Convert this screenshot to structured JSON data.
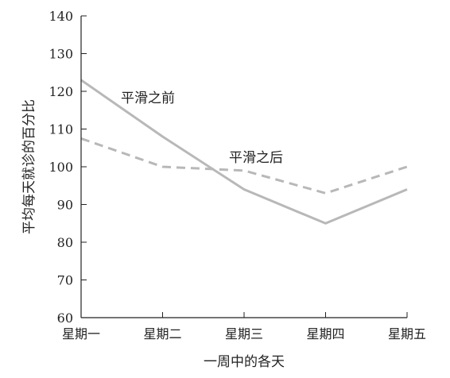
{
  "chart_data": {
    "type": "line",
    "title": "",
    "xlabel": "一周中的各天",
    "ylabel": "平均每天就诊的百分比",
    "categories": [
      "星期一",
      "星期二",
      "星期三",
      "星期四",
      "星期五"
    ],
    "ylim": [
      60,
      140
    ],
    "yticks": [
      60,
      70,
      80,
      90,
      100,
      110,
      120,
      130,
      140
    ],
    "grid": false,
    "series": [
      {
        "name": "平滑之前",
        "values": [
          123,
          108,
          94,
          85,
          94
        ],
        "color": "#b8b8b8",
        "style": "solid"
      },
      {
        "name": "平滑之后",
        "values": [
          107.5,
          100,
          99,
          93,
          100
        ],
        "color": "#b8b8b8",
        "style": "dashed"
      }
    ]
  }
}
